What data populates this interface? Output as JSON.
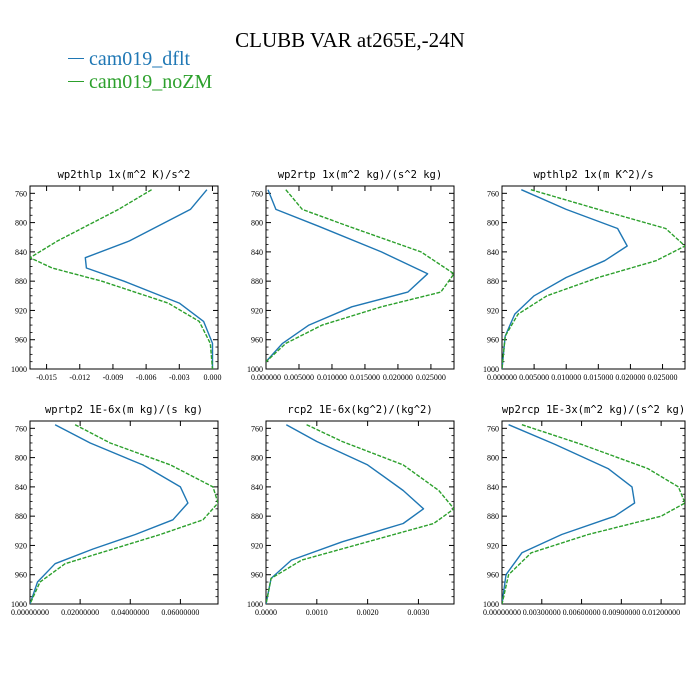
{
  "figure": {
    "title": "CLUBB VAR at265E,-24N",
    "legend": [
      {
        "label": "cam019_dflt",
        "color": "#1f77b4"
      },
      {
        "label": "cam019_noZM",
        "color": "#2ca02c"
      }
    ]
  },
  "chart_data": [
    {
      "type": "line",
      "title": "wp2thlp   1x(m^2 K)/s^2",
      "ylim": [
        1000,
        750
      ],
      "y_ticks": [
        760,
        800,
        840,
        880,
        920,
        960,
        1000
      ],
      "xlim": [
        -0.0165,
        0.0005
      ],
      "x_ticks": [
        -0.015,
        -0.012,
        -0.009,
        -0.006,
        -0.003,
        0.0
      ],
      "x_tick_labels": [
        "-0.015",
        "-0.012",
        "-0.009",
        "-0.006",
        "-0.003",
        "0.000"
      ],
      "series": [
        {
          "name": "cam019_dflt",
          "color": "#1f77b4",
          "dashed": false,
          "x": [
            -0.0005,
            -0.002,
            -0.0075,
            -0.0115,
            -0.0114,
            -0.008,
            -0.003,
            -0.0008,
            0.0,
            0.0
          ],
          "y": [
            755,
            782,
            825,
            848,
            862,
            880,
            910,
            935,
            965,
            1000
          ]
        },
        {
          "name": "cam019_noZM",
          "color": "#2ca02c",
          "dashed": true,
          "x": [
            -0.0055,
            -0.0085,
            -0.014,
            -0.0165,
            -0.0145,
            -0.01,
            -0.004,
            -0.0012,
            -0.0002,
            0.0
          ],
          "y": [
            755,
            782,
            825,
            848,
            862,
            880,
            910,
            935,
            965,
            1000
          ]
        }
      ]
    },
    {
      "type": "line",
      "title": "wp2rtp   1x(m^2 kg)/(s^2 kg)",
      "ylim": [
        1000,
        750
      ],
      "y_ticks": [
        760,
        800,
        840,
        880,
        920,
        960,
        1000
      ],
      "xlim": [
        0.0,
        0.0285
      ],
      "x_ticks": [
        0.0,
        0.005,
        0.01,
        0.015,
        0.02,
        0.025
      ],
      "x_tick_labels": [
        "0.000000",
        "0.005000",
        "0.010000",
        "0.015000",
        "0.020000",
        "0.025000"
      ],
      "series": [
        {
          "name": "cam019_dflt",
          "color": "#1f77b4",
          "dashed": false,
          "x": [
            0.0003,
            0.0015,
            0.008,
            0.0175,
            0.0245,
            0.0215,
            0.013,
            0.0065,
            0.0025,
            0.0
          ],
          "y": [
            755,
            782,
            805,
            840,
            870,
            895,
            915,
            940,
            965,
            990
          ]
        },
        {
          "name": "cam019_noZM",
          "color": "#2ca02c",
          "dashed": true,
          "x": [
            0.003,
            0.0055,
            0.0125,
            0.0235,
            0.0285,
            0.0265,
            0.0175,
            0.0085,
            0.003,
            0.0
          ],
          "y": [
            755,
            782,
            805,
            840,
            870,
            895,
            915,
            940,
            965,
            990
          ]
        }
      ]
    },
    {
      "type": "line",
      "title": "wpthlp2   1x(m K^2)/s",
      "ylim": [
        1000,
        750
      ],
      "y_ticks": [
        760,
        800,
        840,
        880,
        920,
        960,
        1000
      ],
      "xlim": [
        0.0,
        0.0285
      ],
      "x_ticks": [
        0.0,
        0.005,
        0.01,
        0.015,
        0.02,
        0.025
      ],
      "x_tick_labels": [
        "0.000000",
        "0.005000",
        "0.010000",
        "0.015000",
        "0.020000",
        "0.025000"
      ],
      "series": [
        {
          "name": "cam019_dflt",
          "color": "#1f77b4",
          "dashed": false,
          "x": [
            0.003,
            0.01,
            0.018,
            0.0195,
            0.016,
            0.01,
            0.005,
            0.002,
            0.0005,
            0.0
          ],
          "y": [
            755,
            782,
            808,
            832,
            852,
            875,
            900,
            925,
            955,
            1000
          ]
        },
        {
          "name": "cam019_noZM",
          "color": "#2ca02c",
          "dashed": true,
          "x": [
            0.0045,
            0.015,
            0.0255,
            0.0285,
            0.024,
            0.015,
            0.007,
            0.0025,
            0.0005,
            0.0
          ],
          "y": [
            755,
            782,
            808,
            832,
            852,
            875,
            900,
            925,
            955,
            1000
          ]
        }
      ]
    },
    {
      "type": "line",
      "title": "wprtp2   1E-6x(m kg)/(s kg)",
      "ylim": [
        1000,
        750
      ],
      "y_ticks": [
        760,
        800,
        840,
        880,
        920,
        960,
        1000
      ],
      "xlim": [
        0.0,
        0.075
      ],
      "x_ticks": [
        0.0,
        0.02,
        0.04,
        0.06
      ],
      "x_tick_labels": [
        "0.00000000",
        "0.02000000",
        "0.04000000",
        "0.06000000"
      ],
      "series": [
        {
          "name": "cam019_dflt",
          "color": "#1f77b4",
          "dashed": false,
          "x": [
            0.01,
            0.024,
            0.045,
            0.06,
            0.063,
            0.057,
            0.042,
            0.025,
            0.01,
            0.003,
            0.0
          ],
          "y": [
            755,
            780,
            810,
            840,
            862,
            885,
            905,
            925,
            945,
            970,
            1000
          ]
        },
        {
          "name": "cam019_noZM",
          "color": "#2ca02c",
          "dashed": true,
          "x": [
            0.018,
            0.032,
            0.056,
            0.073,
            0.075,
            0.069,
            0.052,
            0.033,
            0.014,
            0.004,
            0.0
          ],
          "y": [
            755,
            780,
            810,
            840,
            862,
            885,
            905,
            925,
            945,
            970,
            1000
          ]
        }
      ]
    },
    {
      "type": "line",
      "title": "rcp2   1E-6x(kg^2)/(kg^2)",
      "ylim": [
        1000,
        750
      ],
      "y_ticks": [
        760,
        800,
        840,
        880,
        920,
        960,
        1000
      ],
      "xlim": [
        0.0,
        0.0037
      ],
      "x_ticks": [
        0.0,
        0.001,
        0.002,
        0.003
      ],
      "x_tick_labels": [
        "0.0000",
        "0.0010",
        "0.0020",
        "0.0030"
      ],
      "series": [
        {
          "name": "cam019_dflt",
          "color": "#1f77b4",
          "dashed": false,
          "x": [
            0.0004,
            0.001,
            0.002,
            0.0027,
            0.0031,
            0.0027,
            0.0015,
            0.0005,
            0.0001,
            0.0
          ],
          "y": [
            755,
            778,
            810,
            845,
            870,
            890,
            915,
            940,
            965,
            1000
          ]
        },
        {
          "name": "cam019_noZM",
          "color": "#2ca02c",
          "dashed": true,
          "x": [
            0.0008,
            0.0015,
            0.0027,
            0.0034,
            0.0037,
            0.0033,
            0.002,
            0.0007,
            0.0001,
            0.0
          ],
          "y": [
            755,
            778,
            810,
            845,
            870,
            890,
            915,
            940,
            965,
            1000
          ]
        }
      ]
    },
    {
      "type": "line",
      "title": "wp2rcp   1E-3x(m^2 kg)/(s^2 kg)",
      "ylim": [
        1000,
        750
      ],
      "y_ticks": [
        760,
        800,
        840,
        880,
        920,
        960,
        1000
      ],
      "xlim": [
        0.0,
        0.0138
      ],
      "x_ticks": [
        0.0,
        0.003,
        0.006,
        0.009,
        0.012
      ],
      "x_tick_labels": [
        "0.00000000",
        "0.00300000",
        "0.00600000",
        "0.00900000",
        "0.01200000"
      ],
      "series": [
        {
          "name": "cam019_dflt",
          "color": "#1f77b4",
          "dashed": false,
          "x": [
            0.0005,
            0.004,
            0.008,
            0.0098,
            0.01,
            0.0085,
            0.0045,
            0.0015,
            0.0003,
            0.0
          ],
          "y": [
            755,
            782,
            815,
            840,
            862,
            880,
            905,
            930,
            960,
            1000
          ]
        },
        {
          "name": "cam019_noZM",
          "color": "#2ca02c",
          "dashed": true,
          "x": [
            0.0015,
            0.006,
            0.011,
            0.0133,
            0.0138,
            0.012,
            0.0065,
            0.0022,
            0.0005,
            0.0
          ],
          "y": [
            755,
            782,
            815,
            840,
            862,
            880,
            905,
            930,
            960,
            1000
          ]
        }
      ]
    }
  ]
}
